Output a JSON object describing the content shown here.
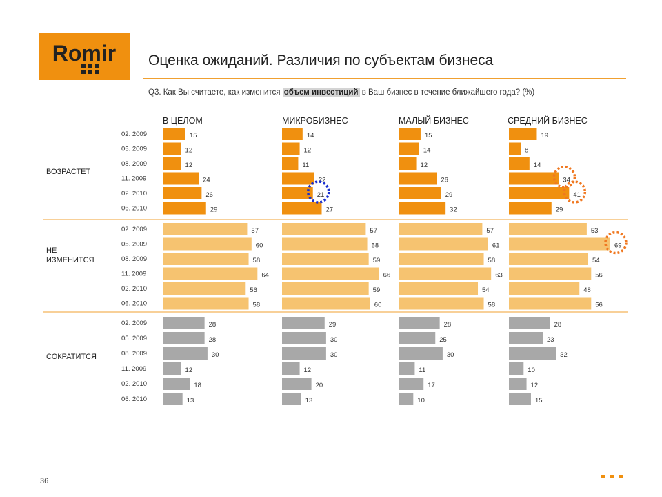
{
  "page": {
    "title": "Оценка ожиданий. Различия по субъектам бизнеса",
    "question_prefix": "Q3. Как Вы считаете, как изменится",
    "question_highlight": "объем инвестиций",
    "question_suffix": "в Ваш бизнес в течение ближайшего года? (%)",
    "page_number": "36",
    "logo_text": "Romir"
  },
  "colors": {
    "orange_dark": "#f0900f",
    "orange_light": "#f6c370",
    "gray": "#a8a8a8",
    "highlight_orange": "#f07820",
    "highlight_blue": "#1a2fd0",
    "rule": "#f0a030"
  },
  "chart_data": {
    "type": "bar",
    "orientation": "horizontal",
    "periods": [
      "02. 2009",
      "05. 2009",
      "08. 2009",
      "11. 2009",
      "02. 2010",
      "06. 2010"
    ],
    "columns": [
      "В ЦЕЛОМ",
      "МИКРОБИЗНЕС",
      "МАЛЫЙ БИЗНЕС",
      "СРЕДНИЙ БИЗНЕС"
    ],
    "groups": [
      {
        "label": "ВОЗРАСТЕТ",
        "color": "#f0900f",
        "values": [
          [
            15,
            12,
            12,
            24,
            26,
            29
          ],
          [
            14,
            12,
            11,
            22,
            21,
            27
          ],
          [
            15,
            14,
            12,
            26,
            29,
            32
          ],
          [
            19,
            8,
            14,
            34,
            41,
            29
          ]
        ]
      },
      {
        "label": "НЕ ИЗМЕНИТСЯ",
        "color": "#f6c370",
        "values": [
          [
            57,
            60,
            58,
            64,
            56,
            58
          ],
          [
            57,
            58,
            59,
            66,
            59,
            60
          ],
          [
            57,
            61,
            58,
            63,
            54,
            58
          ],
          [
            53,
            69,
            54,
            56,
            48,
            56
          ]
        ]
      },
      {
        "label": "СОКРАТИТСЯ",
        "color": "#a8a8a8",
        "values": [
          [
            28,
            28,
            30,
            12,
            18,
            13
          ],
          [
            29,
            30,
            30,
            12,
            20,
            13
          ],
          [
            28,
            25,
            30,
            11,
            17,
            10
          ],
          [
            28,
            23,
            32,
            10,
            12,
            15
          ]
        ]
      }
    ],
    "highlights": [
      {
        "group": 0,
        "column": 1,
        "period": 4,
        "style": "blue-dotted-circle"
      },
      {
        "group": 0,
        "column": 3,
        "period": 3,
        "style": "orange-dotted-circle"
      },
      {
        "group": 0,
        "column": 3,
        "period": 4,
        "style": "orange-dotted-circle"
      },
      {
        "group": 1,
        "column": 3,
        "period": 1,
        "style": "orange-dotted-circle"
      }
    ]
  }
}
